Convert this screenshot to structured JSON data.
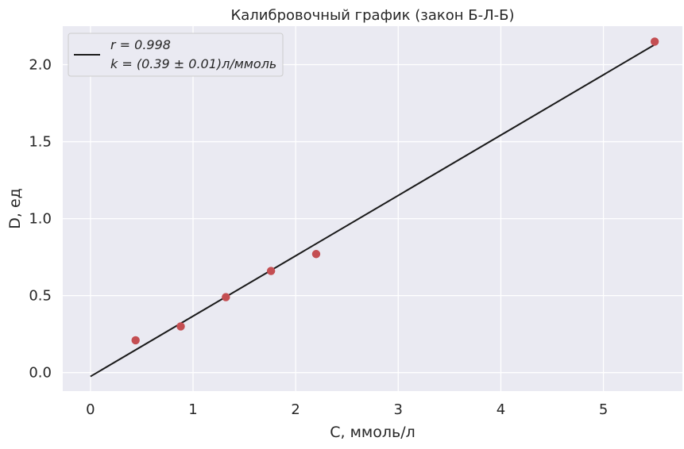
{
  "chart_data": {
    "type": "scatter",
    "title": "Калибровочный график (закон Б-Л-Б)",
    "xlabel": "С, ммоль/л",
    "ylabel": "D, ед",
    "xlim": [
      -0.27,
      5.77
    ],
    "ylim": [
      -0.12,
      2.25
    ],
    "xticks": [
      0,
      1,
      2,
      3,
      4,
      5
    ],
    "xtick_labels": [
      "0",
      "1",
      "2",
      "3",
      "4",
      "5"
    ],
    "yticks": [
      0.0,
      0.5,
      1.0,
      1.5,
      2.0
    ],
    "ytick_labels": [
      "0.0",
      "0.5",
      "1.0",
      "1.5",
      "2.0"
    ],
    "grid": true,
    "background": "#eaeaf2",
    "points": {
      "color": "#c44e52",
      "x": [
        0.44,
        0.88,
        1.32,
        1.76,
        2.2,
        5.5
      ],
      "y": [
        0.21,
        0.3,
        0.49,
        0.66,
        0.77,
        2.15
      ]
    },
    "fit_line": {
      "color": "#1a1a1a",
      "x": [
        0,
        5.5
      ],
      "y": [
        -0.025,
        2.13
      ]
    },
    "legend": {
      "placement": "top-left",
      "lines": [
        "r = 0.998",
        "k = (0.39 ± 0.01)л/ммоль"
      ]
    }
  }
}
